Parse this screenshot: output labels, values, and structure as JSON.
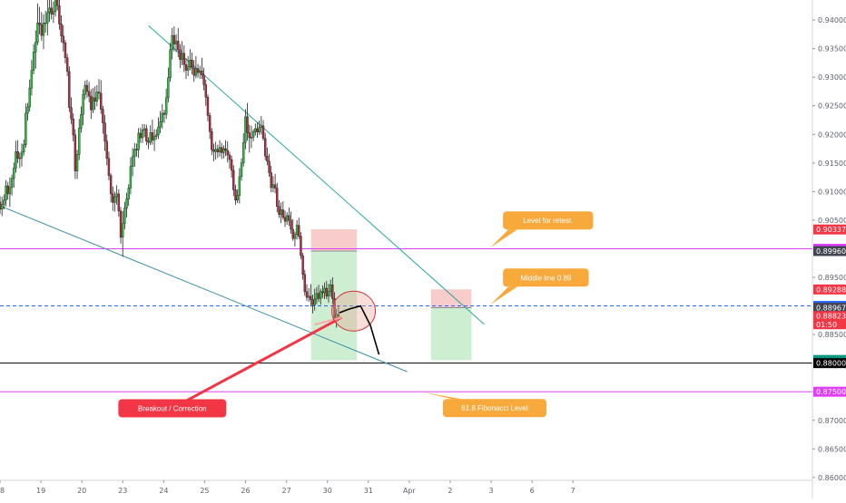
{
  "chart_data": {
    "type": "candlestick",
    "price_axis": {
      "ylim": [
        0.8595,
        0.9435
      ],
      "ticks": [
        "0.94000",
        "0.93500",
        "0.93000",
        "0.92500",
        "0.92000",
        "0.91500",
        "0.91000",
        "0.90500",
        "0.89500",
        "0.88500",
        "0.87000",
        "0.86500",
        "0.86000"
      ],
      "tick_values": [
        0.94,
        0.935,
        0.93,
        0.925,
        0.92,
        0.915,
        0.91,
        0.905,
        0.895,
        0.885,
        0.87,
        0.865,
        0.86
      ]
    },
    "time_axis": {
      "xlim": [
        18,
        37.85
      ],
      "ticks": [
        {
          "label": "18",
          "t": 18
        },
        {
          "label": "19",
          "t": 19
        },
        {
          "label": "20",
          "t": 20
        },
        {
          "label": "23",
          "t": 21
        },
        {
          "label": "24",
          "t": 22
        },
        {
          "label": "25",
          "t": 23
        },
        {
          "label": "26",
          "t": 24
        },
        {
          "label": "27",
          "t": 25
        },
        {
          "label": "30",
          "t": 26
        },
        {
          "label": "31",
          "t": 27
        },
        {
          "label": "Apr",
          "t": 28
        },
        {
          "label": "2",
          "t": 29
        },
        {
          "label": "3",
          "t": 30
        },
        {
          "label": "6",
          "t": 31
        },
        {
          "label": "7",
          "t": 32
        }
      ]
    },
    "price_badges": [
      {
        "label": "0.90337",
        "value": 0.90337,
        "color": "#f23645"
      },
      {
        "label": "0.90000",
        "value": 0.9,
        "color": "#e040fb"
      },
      {
        "label": "0.89960",
        "value": 0.8996,
        "color": "#434651"
      },
      {
        "label": "0.89288",
        "value": 0.89288,
        "color": "#f23645"
      },
      {
        "label": "0.89000",
        "value": 0.89,
        "color": "#2962ff"
      },
      {
        "label": "0.88967",
        "value": 0.88967,
        "color": "#434651"
      },
      {
        "label": "0.88823",
        "value": 0.88823,
        "color": "#f23645"
      },
      {
        "label": "01:50",
        "value": 0.8868,
        "color": "#f23645"
      },
      {
        "label": "0.88055",
        "value": 0.88055,
        "color": "#089981"
      },
      {
        "label": "0.88030",
        "value": 0.8803,
        "color": "#089981"
      },
      {
        "label": "0.88000",
        "value": 0.88,
        "color": "#000000"
      },
      {
        "label": "0.87500",
        "value": 0.875,
        "color": "#e040fb"
      }
    ],
    "horizontal_levels": [
      {
        "value": 0.9,
        "color": "#e040fb",
        "style": "solid"
      },
      {
        "value": 0.89,
        "color": "#2962ff",
        "style": "dashed"
      },
      {
        "value": 0.88,
        "color": "#000000",
        "style": "solid"
      },
      {
        "value": 0.875,
        "color": "#e040fb",
        "style": "solid"
      }
    ],
    "trendlines": [
      {
        "points": [
          [
            21.63,
            0.939
          ],
          [
            29.83,
            0.8868
          ]
        ],
        "color": "#26a69a"
      },
      {
        "points": [
          [
            18.0,
            0.9075
          ],
          [
            27.95,
            0.8785
          ]
        ],
        "color": "#3d8fa6"
      }
    ],
    "positions": [
      {
        "t0": 25.6,
        "t1": 26.72,
        "entry": 0.8996,
        "stop": 0.9034,
        "target": 0.8805
      },
      {
        "t0": 28.53,
        "t1": 29.52,
        "entry": 0.8897,
        "stop": 0.8929,
        "target": 0.8805
      }
    ],
    "projection_path": [
      [
        26.29,
        0.8888
      ],
      [
        26.55,
        0.8895
      ],
      [
        26.81,
        0.89
      ],
      [
        27.05,
        0.8866
      ],
      [
        27.26,
        0.8815
      ]
    ],
    "highlight_circle": {
      "t": 26.64,
      "price": 0.8891
    },
    "breakout_arrow": {
      "from": [
        22.21,
        0.8721
      ],
      "to": [
        26.35,
        0.888
      ]
    },
    "annotations": [
      {
        "text": "Level for retest.",
        "anchor": [
          29.98,
          0.9002
        ],
        "color": "#f7a93b"
      },
      {
        "text": "Middle line 0.89",
        "anchor": [
          29.98,
          0.8902
        ],
        "color": "#f7a93b"
      },
      {
        "text": "61.8 Fibonacci Level",
        "anchor": [
          28.29,
          0.875
        ],
        "color": "#f7a93b"
      },
      {
        "text": "Breakout / Correction",
        "anchor": [
          22.21,
          0.8721
        ],
        "color": "#f23645"
      }
    ],
    "grid": false,
    "up_color": "#22c33a",
    "down_color": "#b3293f",
    "candles": [
      [
        0.9082,
        0.9092,
        0.9061,
        0.9069
      ],
      [
        0.9069,
        0.9091,
        0.9057,
        0.9078
      ],
      [
        0.9078,
        0.9095,
        0.9069,
        0.9085
      ],
      [
        0.9085,
        0.912,
        0.9074,
        0.911
      ],
      [
        0.911,
        0.9117,
        0.9086,
        0.9096
      ],
      [
        0.9096,
        0.9125,
        0.9073,
        0.9107
      ],
      [
        0.9107,
        0.913,
        0.9093,
        0.9123
      ],
      [
        0.9123,
        0.9151,
        0.9107,
        0.9141
      ],
      [
        0.9141,
        0.9189,
        0.9133,
        0.917
      ],
      [
        0.917,
        0.919,
        0.915,
        0.9158
      ],
      [
        0.9158,
        0.9168,
        0.9141,
        0.9159
      ],
      [
        0.9159,
        0.9184,
        0.9144,
        0.9169
      ],
      [
        0.9169,
        0.9191,
        0.9163,
        0.9182
      ],
      [
        0.9182,
        0.9254,
        0.9177,
        0.9237
      ],
      [
        0.9237,
        0.9255,
        0.9224,
        0.9248
      ],
      [
        0.9248,
        0.9296,
        0.924,
        0.9281
      ],
      [
        0.9281,
        0.933,
        0.9268,
        0.9312
      ],
      [
        0.9312,
        0.9358,
        0.9305,
        0.9344
      ],
      [
        0.9344,
        0.9382,
        0.9315,
        0.9361
      ],
      [
        0.9361,
        0.9429,
        0.9356,
        0.9395
      ],
      [
        0.9395,
        0.9423,
        0.9375,
        0.9392
      ],
      [
        0.9392,
        0.9414,
        0.9364,
        0.9373
      ],
      [
        0.9373,
        0.941,
        0.9349,
        0.9395
      ],
      [
        0.9395,
        0.9416,
        0.9378,
        0.9395
      ],
      [
        0.9395,
        0.9438,
        0.9373,
        0.9413
      ],
      [
        0.9413,
        0.9449,
        0.9397,
        0.9421
      ],
      [
        0.9421,
        0.9452,
        0.9401,
        0.941
      ],
      [
        0.941,
        0.9432,
        0.9395,
        0.9415
      ],
      [
        0.9415,
        0.9447,
        0.9406,
        0.9436
      ],
      [
        0.9436,
        0.9452,
        0.9417,
        0.9425
      ],
      [
        0.9425,
        0.9438,
        0.9383,
        0.9393
      ],
      [
        0.9393,
        0.9408,
        0.9361,
        0.9372
      ],
      [
        0.9372,
        0.9391,
        0.9345,
        0.936
      ],
      [
        0.936,
        0.9365,
        0.9324,
        0.9334
      ],
      [
        0.9334,
        0.9341,
        0.9302,
        0.931
      ],
      [
        0.931,
        0.9319,
        0.9239,
        0.9247
      ],
      [
        0.9247,
        0.9265,
        0.9218,
        0.9227
      ],
      [
        0.9227,
        0.9237,
        0.9188,
        0.9199
      ],
      [
        0.9199,
        0.9209,
        0.9122,
        0.9136
      ],
      [
        0.9136,
        0.9173,
        0.9122,
        0.9165
      ],
      [
        0.9165,
        0.9227,
        0.9155,
        0.9211
      ],
      [
        0.9211,
        0.9249,
        0.9203,
        0.9235
      ],
      [
        0.9235,
        0.9279,
        0.9216,
        0.927
      ],
      [
        0.927,
        0.9294,
        0.9261,
        0.9286
      ],
      [
        0.9286,
        0.9296,
        0.9264,
        0.9275
      ],
      [
        0.9275,
        0.9292,
        0.9256,
        0.9267
      ],
      [
        0.9267,
        0.9279,
        0.9227,
        0.9243
      ],
      [
        0.9243,
        0.9281,
        0.9237,
        0.9264
      ],
      [
        0.9264,
        0.9284,
        0.9243,
        0.9258
      ],
      [
        0.9258,
        0.9286,
        0.9249,
        0.9274
      ],
      [
        0.9274,
        0.9297,
        0.9261,
        0.9272
      ],
      [
        0.9272,
        0.9295,
        0.9236,
        0.9244
      ],
      [
        0.9244,
        0.925,
        0.9201,
        0.922
      ],
      [
        0.922,
        0.9234,
        0.9171,
        0.9188
      ],
      [
        0.9188,
        0.92,
        0.9146,
        0.9158
      ],
      [
        0.9158,
        0.917,
        0.912,
        0.9128
      ],
      [
        0.9128,
        0.9132,
        0.9081,
        0.9096
      ],
      [
        0.9096,
        0.9109,
        0.9066,
        0.9081
      ],
      [
        0.9081,
        0.91,
        0.9065,
        0.9091
      ],
      [
        0.9091,
        0.9111,
        0.9077,
        0.9096
      ],
      [
        0.9096,
        0.9104,
        0.9056,
        0.9066
      ],
      [
        0.9066,
        0.9073,
        0.9009,
        0.902
      ],
      [
        0.902,
        0.9066,
        0.8986,
        0.9044
      ],
      [
        0.9044,
        0.9082,
        0.9034,
        0.9071
      ],
      [
        0.9071,
        0.9098,
        0.9055,
        0.9087
      ],
      [
        0.9087,
        0.9113,
        0.9075,
        0.9106
      ],
      [
        0.9106,
        0.916,
        0.9095,
        0.9144
      ],
      [
        0.9144,
        0.9176,
        0.9127,
        0.9161
      ],
      [
        0.9161,
        0.9185,
        0.9143,
        0.9174
      ],
      [
        0.9174,
        0.9184,
        0.9161,
        0.9173
      ],
      [
        0.9173,
        0.9211,
        0.9159,
        0.9202
      ],
      [
        0.9202,
        0.9212,
        0.9185,
        0.9194
      ],
      [
        0.9194,
        0.9218,
        0.9185,
        0.9208
      ],
      [
        0.9208,
        0.9218,
        0.9195,
        0.921
      ],
      [
        0.921,
        0.9217,
        0.9181,
        0.9188
      ],
      [
        0.9188,
        0.9195,
        0.9174,
        0.9186
      ],
      [
        0.9186,
        0.9216,
        0.9181,
        0.9203
      ],
      [
        0.9203,
        0.9226,
        0.9182,
        0.919
      ],
      [
        0.919,
        0.9209,
        0.9171,
        0.9196
      ],
      [
        0.9196,
        0.9209,
        0.9191,
        0.9199
      ],
      [
        0.9199,
        0.923,
        0.9192,
        0.9213
      ],
      [
        0.9213,
        0.9241,
        0.9202,
        0.9222
      ],
      [
        0.9222,
        0.9253,
        0.921,
        0.9237
      ],
      [
        0.9237,
        0.9243,
        0.922,
        0.9235
      ],
      [
        0.9235,
        0.928,
        0.9227,
        0.9264
      ],
      [
        0.9264,
        0.9317,
        0.9256,
        0.9299
      ],
      [
        0.9299,
        0.936,
        0.9292,
        0.9348
      ],
      [
        0.9348,
        0.9386,
        0.9331,
        0.9373
      ],
      [
        0.9373,
        0.9389,
        0.9345,
        0.9358
      ],
      [
        0.9358,
        0.9375,
        0.9344,
        0.9363
      ],
      [
        0.9363,
        0.9386,
        0.9335,
        0.9348
      ],
      [
        0.9348,
        0.9358,
        0.9316,
        0.9331
      ],
      [
        0.9331,
        0.9363,
        0.9321,
        0.9342
      ],
      [
        0.9342,
        0.9356,
        0.9309,
        0.9322
      ],
      [
        0.9322,
        0.9333,
        0.9297,
        0.9312
      ],
      [
        0.9312,
        0.9337,
        0.9302,
        0.9318
      ],
      [
        0.9318,
        0.9349,
        0.9312,
        0.933
      ],
      [
        0.933,
        0.9343,
        0.9305,
        0.9316
      ],
      [
        0.9316,
        0.933,
        0.9292,
        0.9303
      ],
      [
        0.9303,
        0.9337,
        0.9298,
        0.9315
      ],
      [
        0.9315,
        0.9323,
        0.9299,
        0.9308
      ],
      [
        0.9308,
        0.932,
        0.9297,
        0.9311
      ],
      [
        0.9311,
        0.9334,
        0.9297,
        0.9304
      ],
      [
        0.9304,
        0.9317,
        0.9277,
        0.9287
      ],
      [
        0.9287,
        0.9296,
        0.925,
        0.9265
      ],
      [
        0.9265,
        0.927,
        0.9223,
        0.9233
      ],
      [
        0.9233,
        0.9238,
        0.9192,
        0.9205
      ],
      [
        0.9205,
        0.9211,
        0.9164,
        0.9173
      ],
      [
        0.9173,
        0.9184,
        0.9153,
        0.917
      ],
      [
        0.917,
        0.9187,
        0.9156,
        0.9174
      ],
      [
        0.9174,
        0.9182,
        0.9159,
        0.9169
      ],
      [
        0.9169,
        0.919,
        0.9161,
        0.9177
      ],
      [
        0.9177,
        0.9185,
        0.9157,
        0.9168
      ],
      [
        0.9168,
        0.9181,
        0.9158,
        0.9175
      ],
      [
        0.9175,
        0.919,
        0.9162,
        0.9172
      ],
      [
        0.9172,
        0.9188,
        0.9151,
        0.9164
      ],
      [
        0.9164,
        0.917,
        0.914,
        0.9156
      ],
      [
        0.9156,
        0.9163,
        0.9124,
        0.9137
      ],
      [
        0.9137,
        0.9146,
        0.9092,
        0.9103
      ],
      [
        0.9103,
        0.9112,
        0.9077,
        0.9085
      ],
      [
        0.9085,
        0.9104,
        0.908,
        0.9093
      ],
      [
        0.9093,
        0.9141,
        0.9079,
        0.9126
      ],
      [
        0.9126,
        0.9158,
        0.9119,
        0.915
      ],
      [
        0.915,
        0.9202,
        0.9144,
        0.9186
      ],
      [
        0.9186,
        0.9244,
        0.9174,
        0.9231
      ],
      [
        0.9231,
        0.9255,
        0.9189,
        0.9203
      ],
      [
        0.9203,
        0.9217,
        0.9168,
        0.9194
      ],
      [
        0.9194,
        0.9215,
        0.9176,
        0.9195
      ],
      [
        0.9195,
        0.9209,
        0.9188,
        0.9205
      ],
      [
        0.9205,
        0.9219,
        0.9198,
        0.921
      ],
      [
        0.921,
        0.9221,
        0.9194,
        0.9204
      ],
      [
        0.9204,
        0.9224,
        0.9199,
        0.9212
      ],
      [
        0.9212,
        0.9232,
        0.92,
        0.9215
      ],
      [
        0.9215,
        0.9225,
        0.9189,
        0.9193
      ],
      [
        0.9193,
        0.9203,
        0.9155,
        0.9162
      ],
      [
        0.9162,
        0.9177,
        0.9146,
        0.9153
      ],
      [
        0.9153,
        0.9166,
        0.9126,
        0.9133
      ],
      [
        0.9133,
        0.9145,
        0.9099,
        0.9107
      ],
      [
        0.9107,
        0.9127,
        0.9099,
        0.9112
      ],
      [
        0.9112,
        0.9131,
        0.9097,
        0.9106
      ],
      [
        0.9106,
        0.9115,
        0.9064,
        0.9074
      ],
      [
        0.9074,
        0.9085,
        0.9054,
        0.906
      ],
      [
        0.906,
        0.9081,
        0.9045,
        0.9068
      ],
      [
        0.9068,
        0.9083,
        0.9051,
        0.9055
      ],
      [
        0.9055,
        0.9067,
        0.9038,
        0.9048
      ],
      [
        0.9048,
        0.9064,
        0.9042,
        0.9058
      ],
      [
        0.9058,
        0.9072,
        0.904,
        0.905
      ],
      [
        0.905,
        0.9065,
        0.9026,
        0.9034
      ],
      [
        0.9034,
        0.9052,
        0.9014,
        0.9018
      ],
      [
        0.9018,
        0.903,
        0.9004,
        0.9025
      ],
      [
        0.9025,
        0.905,
        0.9016,
        0.9041
      ],
      [
        0.9041,
        0.9054,
        0.9017,
        0.9022
      ],
      [
        0.9022,
        0.9029,
        0.8982,
        0.8988
      ],
      [
        0.8988,
        0.8993,
        0.8946,
        0.8955
      ],
      [
        0.8955,
        0.8963,
        0.8918,
        0.8925
      ],
      [
        0.8925,
        0.8938,
        0.8909,
        0.8915
      ],
      [
        0.8915,
        0.8931,
        0.8907,
        0.8917
      ],
      [
        0.8917,
        0.8938,
        0.8899,
        0.8911
      ],
      [
        0.8911,
        0.892,
        0.8887,
        0.8902
      ],
      [
        0.8902,
        0.893,
        0.8892,
        0.8912
      ],
      [
        0.8912,
        0.8933,
        0.8903,
        0.8922
      ],
      [
        0.8922,
        0.8937,
        0.8907,
        0.8913
      ],
      [
        0.8913,
        0.893,
        0.8902,
        0.8925
      ],
      [
        0.8925,
        0.8936,
        0.8914,
        0.8923
      ],
      [
        0.8923,
        0.8941,
        0.8912,
        0.8931
      ],
      [
        0.8931,
        0.8944,
        0.8912,
        0.8917
      ],
      [
        0.8917,
        0.8939,
        0.8906,
        0.8925
      ],
      [
        0.8925,
        0.8946,
        0.8916,
        0.8937
      ],
      [
        0.8937,
        0.895,
        0.8904,
        0.8913
      ],
      [
        0.8913,
        0.8924,
        0.8872,
        0.8878
      ],
      [
        0.8878,
        0.8895,
        0.8862,
        0.8885
      ],
      [
        0.8885,
        0.89,
        0.8874,
        0.8882
      ]
    ]
  }
}
